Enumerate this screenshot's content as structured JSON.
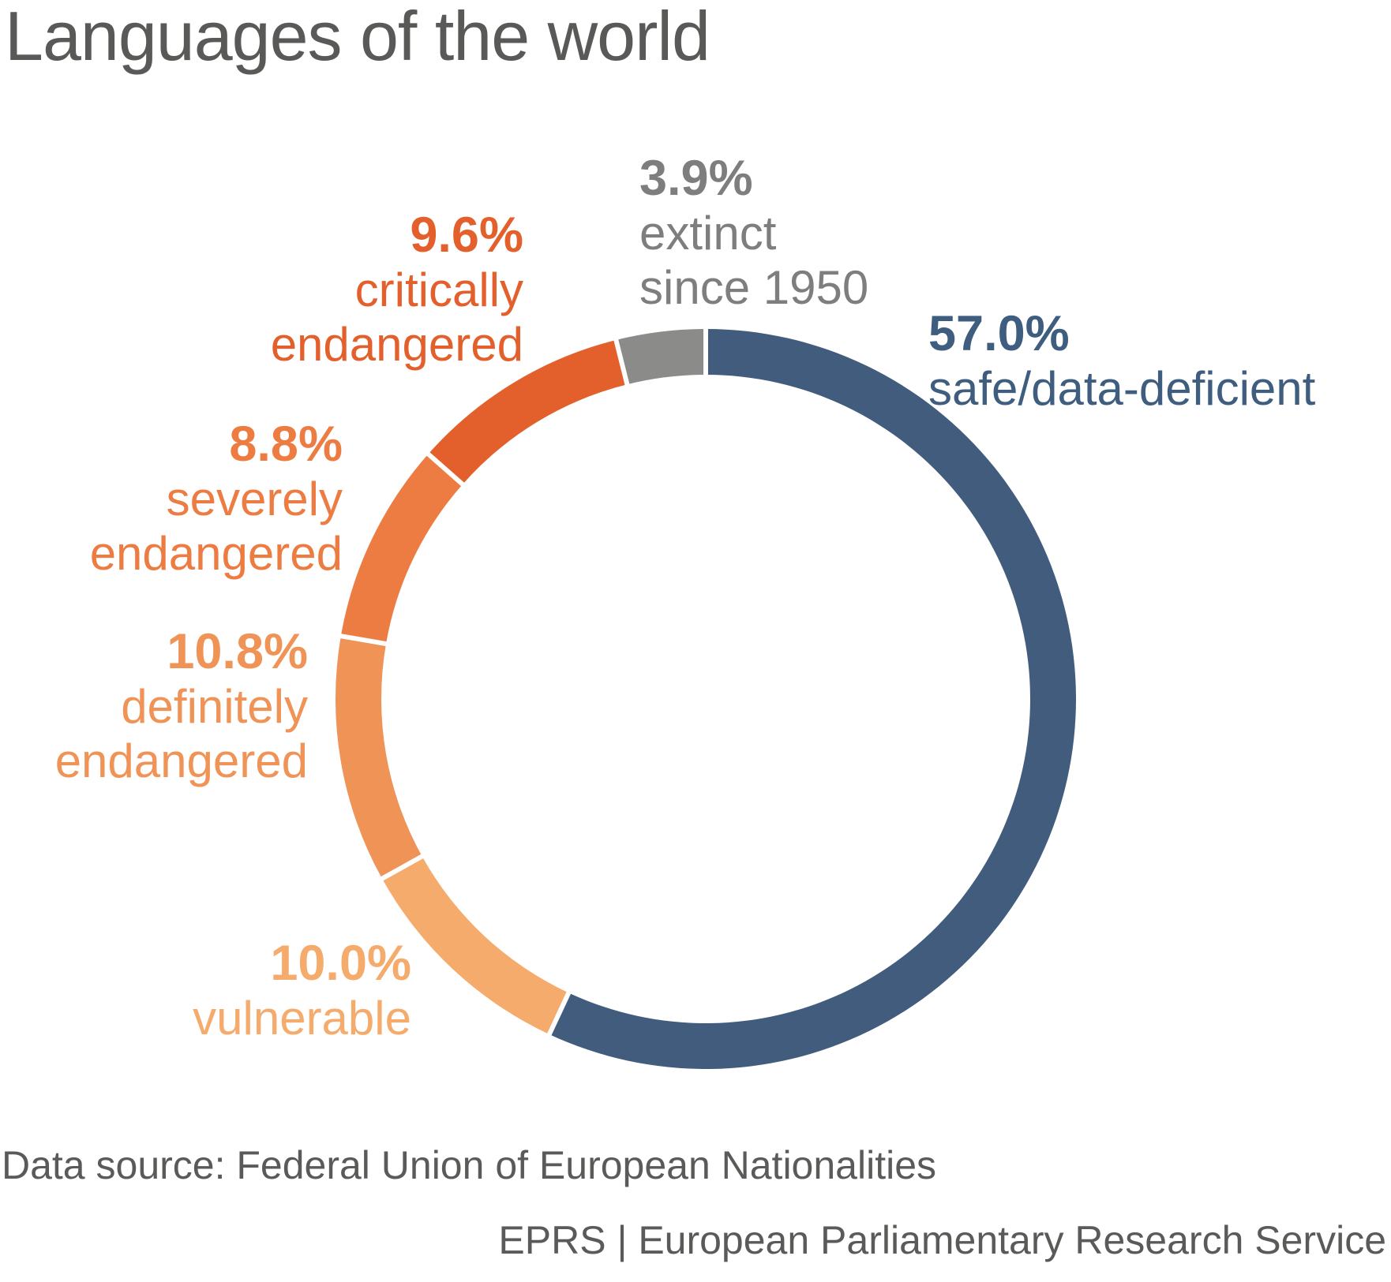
{
  "page": {
    "title": "Languages of the world",
    "footer": {
      "source": "Data source: Federal Union of European Nationalities",
      "credit": "EPRS | European Parliamentary Research Service"
    }
  },
  "chart_data": {
    "type": "pie",
    "subtype": "donut",
    "title": "Languages of the world",
    "unit": "percent",
    "start": "top",
    "direction": "clockwise",
    "legend_position": "labels-around-ring",
    "separator_color": "#ffffff",
    "segments": [
      {
        "id": "safe-data-deficient",
        "pct": "57.0%",
        "value": 57.0,
        "color": "#415c7c",
        "label_color": "#3e5d7f",
        "lines": [
          "safe/data-deficient"
        ]
      },
      {
        "id": "vulnerable",
        "pct": "10.0%",
        "value": 10.0,
        "color": "#f5ab6c",
        "label_color": "#f5ab6c",
        "lines": [
          "vulnerable"
        ]
      },
      {
        "id": "definitely-endangered",
        "pct": "10.8%",
        "value": 10.8,
        "color": "#f09356",
        "label_color": "#f09356",
        "lines": [
          "definitely",
          "endangered"
        ]
      },
      {
        "id": "severely-endangered",
        "pct": "8.8%",
        "value": 8.8,
        "color": "#ed7c43",
        "label_color": "#ed7c43",
        "lines": [
          "severely",
          "endangered"
        ]
      },
      {
        "id": "critically-endangered",
        "pct": "9.6%",
        "value": 9.6,
        "color": "#e3602d",
        "label_color": "#e3602d",
        "lines": [
          "critically",
          "endangered"
        ]
      },
      {
        "id": "extinct-since-1950",
        "pct": "3.9%",
        "value": 3.9,
        "color": "#8b8b89",
        "label_color": "#7e7e7e",
        "lines": [
          "extinct",
          "since 1950"
        ]
      }
    ]
  }
}
